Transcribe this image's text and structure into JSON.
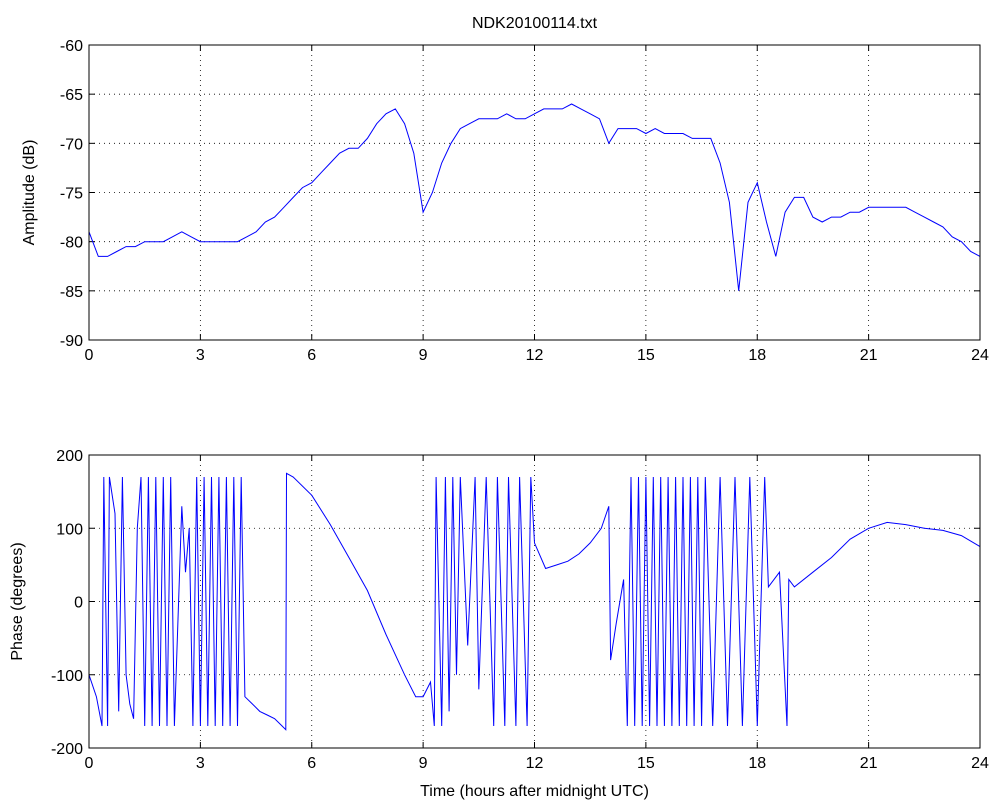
{
  "chart_data": [
    {
      "type": "line",
      "title": "NDK20100114.txt",
      "ylabel": "Amplitude (dB)",
      "color": "#0000ff",
      "grid": true,
      "xlim": [
        0,
        24
      ],
      "xticks": [
        0,
        3,
        6,
        9,
        12,
        15,
        18,
        21,
        24
      ],
      "ylim": [
        -90,
        -60
      ],
      "yticks": [
        -90,
        -85,
        -80,
        -75,
        -70,
        -65,
        -60
      ],
      "x": [
        0,
        0.25,
        0.5,
        0.75,
        1,
        1.25,
        1.5,
        1.75,
        2,
        2.25,
        2.5,
        2.75,
        3,
        3.25,
        3.5,
        3.75,
        4,
        4.25,
        4.5,
        4.75,
        5,
        5.25,
        5.5,
        5.75,
        6,
        6.25,
        6.5,
        6.75,
        7,
        7.25,
        7.5,
        7.75,
        8,
        8.25,
        8.5,
        8.75,
        9,
        9.25,
        9.5,
        9.75,
        10,
        10.25,
        10.5,
        10.75,
        11,
        11.25,
        11.5,
        11.75,
        12,
        12.25,
        12.5,
        12.75,
        13,
        13.25,
        13.5,
        13.75,
        14,
        14.25,
        14.5,
        14.75,
        15,
        15.25,
        15.5,
        15.75,
        16,
        16.25,
        16.5,
        16.75,
        17,
        17.25,
        17.5,
        17.75,
        18,
        18.25,
        18.5,
        18.75,
        19,
        19.25,
        19.5,
        19.75,
        20,
        20.25,
        20.5,
        20.75,
        21,
        21.25,
        21.5,
        21.75,
        22,
        22.25,
        22.5,
        22.75,
        23,
        23.25,
        23.5,
        23.75,
        24
      ],
      "values": [
        -79,
        -81.5,
        -81.5,
        -81,
        -80.5,
        -80.5,
        -80,
        -80,
        -80,
        -79.5,
        -79,
        -79.5,
        -80,
        -80,
        -80,
        -80,
        -80,
        -79.5,
        -79,
        -78,
        -77.5,
        -76.5,
        -75.5,
        -74.5,
        -74,
        -73,
        -72,
        -71,
        -70.5,
        -70.5,
        -69.5,
        -68,
        -67,
        -66.5,
        -68,
        -71,
        -77,
        -75,
        -72,
        -70,
        -68.5,
        -68,
        -67.5,
        -67.5,
        -67.5,
        -67,
        -67.5,
        -67.5,
        -67,
        -66.5,
        -66.5,
        -66.5,
        -66,
        -66.5,
        -67,
        -67.5,
        -70,
        -68.5,
        -68.5,
        -68.5,
        -69,
        -68.5,
        -69,
        -69,
        -69,
        -69.5,
        -69.5,
        -69.5,
        -72,
        -76,
        -85,
        -76,
        -74,
        -78,
        -81.5,
        -77,
        -75.5,
        -75.5,
        -77.5,
        -78,
        -77.5,
        -77.5,
        -77,
        -77,
        -76.5,
        -76.5,
        -76.5,
        -76.5,
        -76.5,
        -77,
        -77.5,
        -78,
        -78.5,
        -79.5,
        -80,
        -81,
        -81.5
      ]
    },
    {
      "type": "line",
      "xlabel": "Time (hours after midnight UTC)",
      "ylabel": "Phase (degrees)",
      "color": "#0000ff",
      "grid": true,
      "xlim": [
        0,
        24
      ],
      "xticks": [
        0,
        3,
        6,
        9,
        12,
        15,
        18,
        21,
        24
      ],
      "ylim": [
        -200,
        200
      ],
      "yticks": [
        -200,
        -100,
        0,
        100,
        200
      ],
      "x": [
        0,
        0.2,
        0.35,
        0.4,
        0.5,
        0.55,
        0.7,
        0.8,
        0.9,
        1.0,
        1.1,
        1.2,
        1.3,
        1.4,
        1.5,
        1.6,
        1.7,
        1.8,
        1.9,
        2.0,
        2.1,
        2.2,
        2.3,
        2.5,
        2.6,
        2.7,
        2.8,
        2.9,
        3.0,
        3.1,
        3.2,
        3.3,
        3.4,
        3.5,
        3.6,
        3.7,
        3.8,
        3.9,
        4.0,
        4.1,
        4.2,
        4.4,
        4.6,
        4.8,
        5.0,
        5.2,
        5.3,
        5.32,
        5.5,
        6.0,
        6.5,
        7.0,
        7.5,
        8.0,
        8.5,
        8.8,
        9.0,
        9.2,
        9.3,
        9.35,
        9.5,
        9.6,
        9.7,
        9.8,
        9.9,
        10.0,
        10.2,
        10.4,
        10.5,
        10.7,
        10.9,
        11.0,
        11.2,
        11.3,
        11.5,
        11.6,
        11.8,
        11.9,
        12.0,
        12.3,
        12.6,
        12.9,
        13.2,
        13.5,
        13.8,
        14.0,
        14.05,
        14.2,
        14.4,
        14.5,
        14.6,
        14.7,
        14.8,
        14.9,
        15.0,
        15.1,
        15.2,
        15.3,
        15.4,
        15.5,
        15.6,
        15.7,
        15.8,
        15.9,
        16.0,
        16.1,
        16.2,
        16.3,
        16.4,
        16.5,
        16.6,
        16.8,
        17.0,
        17.2,
        17.4,
        17.6,
        17.8,
        18.0,
        18.2,
        18.3,
        18.6,
        18.8,
        18.85,
        19.0,
        19.5,
        20.0,
        20.5,
        21.0,
        21.5,
        22.0,
        22.5,
        23.0,
        23.5,
        24.0
      ],
      "values": [
        -100,
        -130,
        -170,
        170,
        -170,
        170,
        120,
        -150,
        170,
        -100,
        -140,
        -160,
        100,
        170,
        -170,
        170,
        -170,
        170,
        -170,
        170,
        -170,
        170,
        -170,
        130,
        40,
        100,
        -170,
        170,
        -170,
        170,
        -170,
        170,
        -170,
        170,
        -170,
        170,
        -170,
        170,
        -170,
        170,
        -130,
        -140,
        -150,
        -155,
        -160,
        -170,
        -175,
        175,
        170,
        145,
        105,
        60,
        15,
        -45,
        -100,
        -130,
        -130,
        -110,
        -170,
        170,
        -170,
        170,
        -150,
        170,
        -100,
        170,
        -60,
        170,
        -120,
        170,
        -170,
        170,
        -170,
        170,
        -170,
        170,
        -170,
        170,
        80,
        45,
        50,
        55,
        65,
        80,
        100,
        130,
        -80,
        -30,
        30,
        -170,
        170,
        -170,
        170,
        -170,
        170,
        -170,
        170,
        -170,
        170,
        -170,
        170,
        -170,
        170,
        -170,
        170,
        -170,
        170,
        -170,
        170,
        -170,
        170,
        -170,
        170,
        -170,
        170,
        -170,
        170,
        -170,
        170,
        20,
        40,
        -170,
        30,
        20,
        40,
        60,
        85,
        100,
        108,
        105,
        100,
        97,
        90,
        75
      ]
    }
  ]
}
